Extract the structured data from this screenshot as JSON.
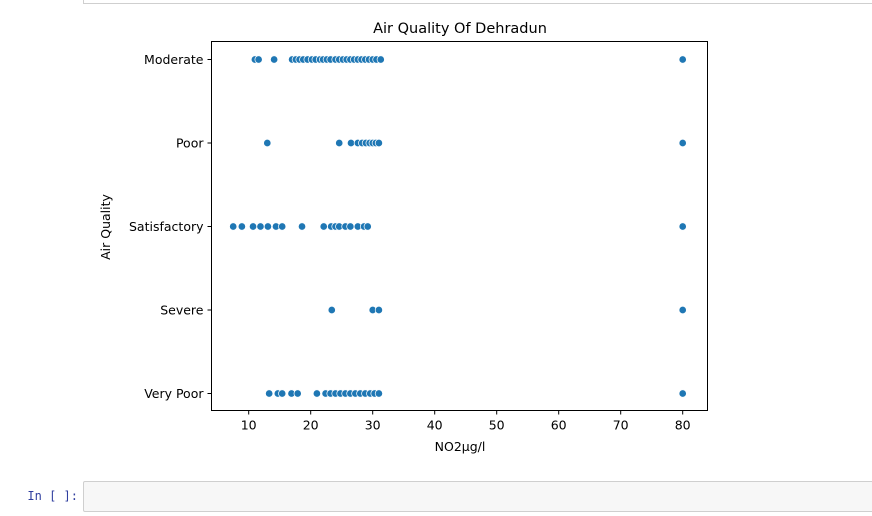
{
  "notebook": {
    "prompt_label": "In [ ]:",
    "code": ""
  },
  "chart_data": {
    "type": "scatter",
    "title": "Air Quality Of Dehradun",
    "xlabel": "NO2µg/l",
    "ylabel": "Air Quality",
    "xlim": [
      4,
      84
    ],
    "x_ticks": [
      10,
      20,
      30,
      40,
      50,
      60,
      70,
      80
    ],
    "categories": [
      "Moderate",
      "Poor",
      "Satisfactory",
      "Severe",
      "Very Poor"
    ],
    "grid": false,
    "legend": "none",
    "point_color": "#1f77b4",
    "series": [
      {
        "category": "Moderate",
        "x": [
          11.0,
          11.6,
          14.1,
          17.0,
          17.6,
          18.2,
          18.8,
          19.5,
          20.2,
          20.8,
          21.5,
          22.0,
          22.6,
          23.2,
          24.0,
          24.6,
          25.2,
          25.8,
          26.4,
          27.0,
          27.6,
          28.2,
          28.8,
          29.4,
          30.0,
          30.6,
          31.3,
          80.0
        ]
      },
      {
        "category": "Poor",
        "x": [
          13.0,
          24.6,
          26.5,
          27.6,
          28.3,
          28.9,
          29.5,
          30.0,
          30.5,
          31.0,
          80.0
        ]
      },
      {
        "category": "Satisfactory",
        "x": [
          7.5,
          8.9,
          10.7,
          11.9,
          13.1,
          14.4,
          15.4,
          18.6,
          22.1,
          23.3,
          24.0,
          24.6,
          25.6,
          26.4,
          27.6,
          28.6,
          29.2,
          80.0
        ]
      },
      {
        "category": "Severe",
        "x": [
          23.4,
          30.0,
          31.0,
          80.0
        ]
      },
      {
        "category": "Very Poor",
        "x": [
          13.3,
          14.7,
          15.4,
          16.9,
          17.9,
          21.0,
          22.4,
          23.2,
          24.0,
          24.8,
          25.6,
          26.4,
          27.2,
          28.0,
          28.8,
          29.6,
          30.3,
          31.0,
          80.0
        ]
      }
    ]
  }
}
